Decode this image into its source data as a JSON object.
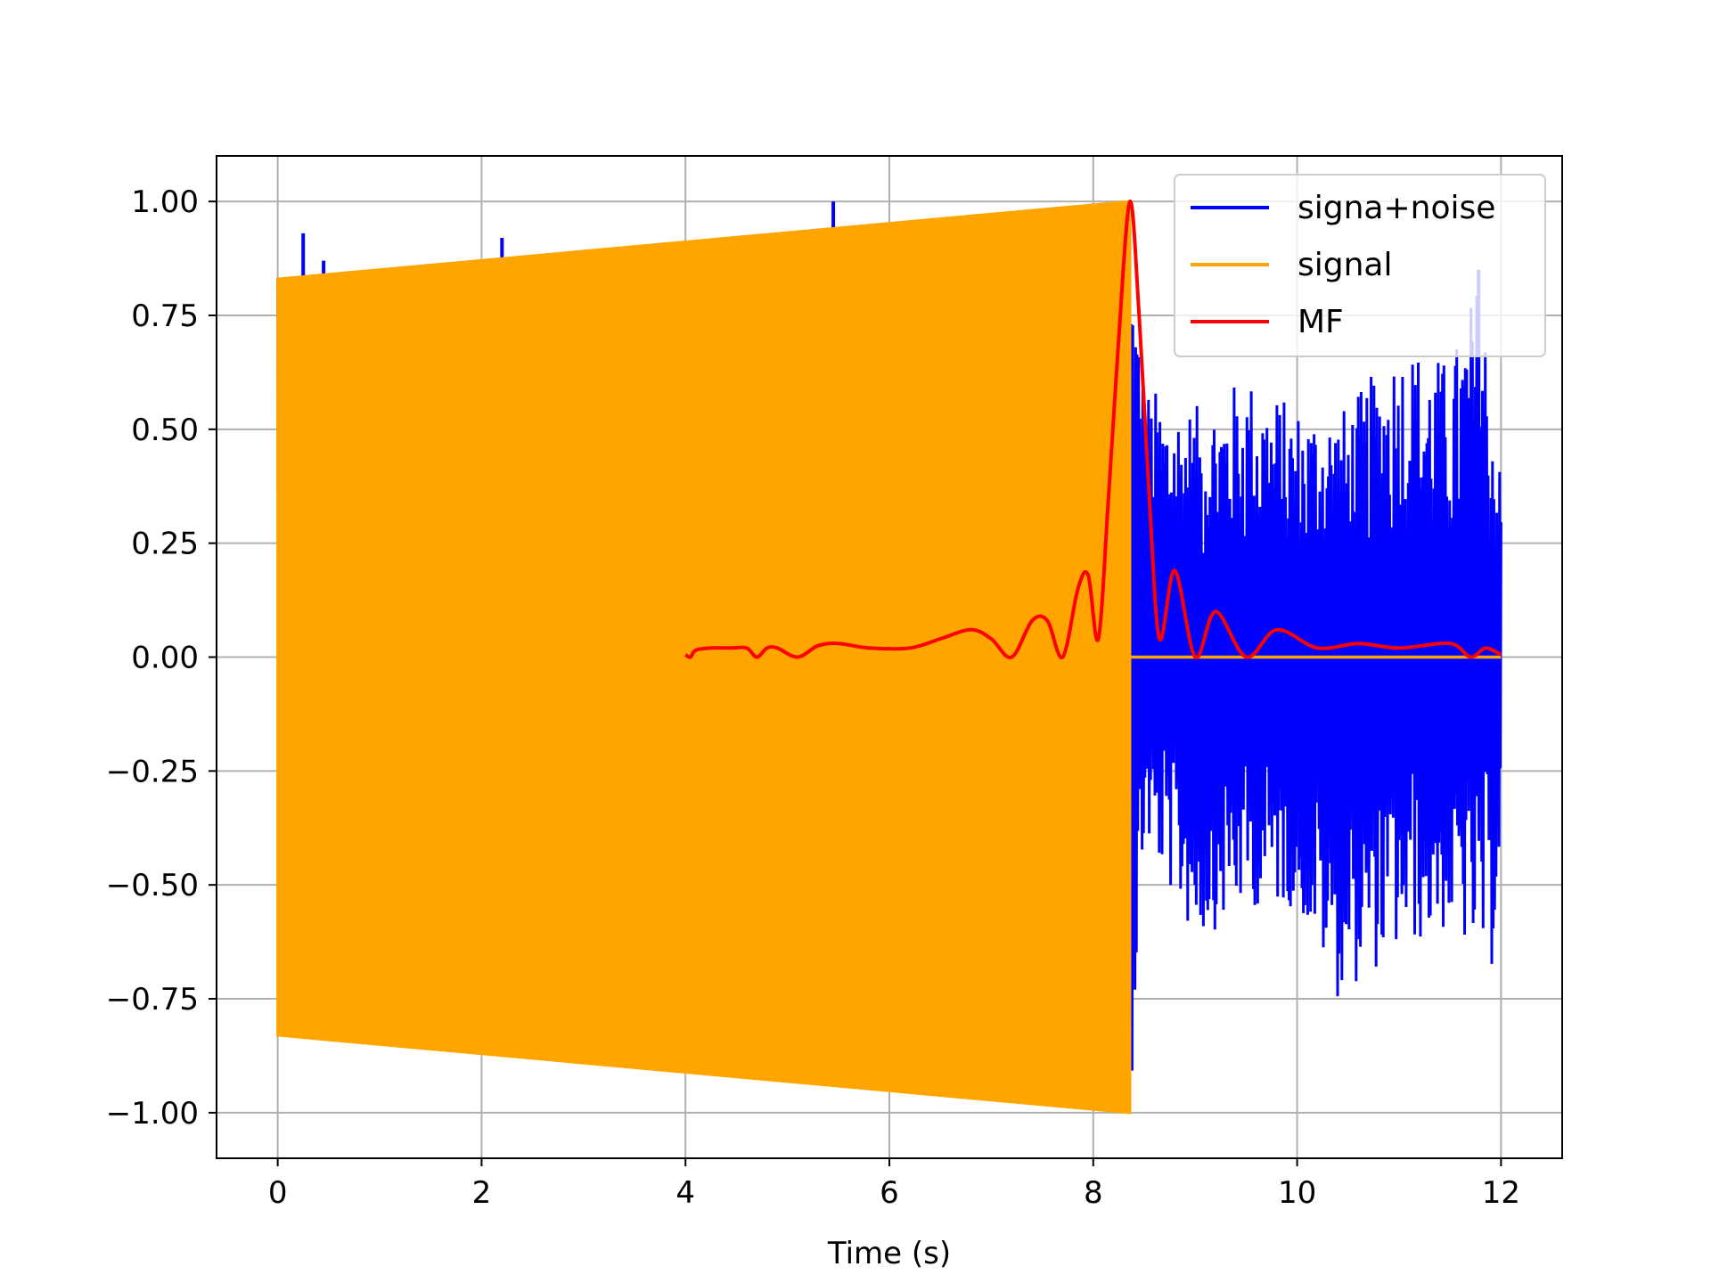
{
  "chart_data": {
    "type": "line",
    "xlabel": "Time (s)",
    "ylabel": "",
    "xlim": [
      -0.6,
      12.6
    ],
    "ylim": [
      -1.1,
      1.1
    ],
    "grid": true,
    "legend_position": "top-right",
    "xticks": [
      0,
      2,
      4,
      6,
      8,
      10,
      12
    ],
    "xtick_labels": [
      "0",
      "2",
      "4",
      "6",
      "8",
      "10",
      "12"
    ],
    "yticks": [
      1.0,
      0.75,
      0.5,
      0.25,
      0.0,
      -0.25,
      -0.5,
      -0.75,
      -1.0
    ],
    "ytick_labels": [
      "1.00",
      "0.75",
      "0.50",
      "0.25",
      "0.00",
      "−0.25",
      "−0.50",
      "−0.75",
      "−1.00"
    ],
    "series": [
      {
        "name": "signa+noise",
        "color": "#0000ff",
        "description": "chirp plus noise; after the chirp ends at ~8.36 s only noise remains",
        "upper_envelope": {
          "x": [
            0,
            0.25,
            0.45,
            2.2,
            5.45,
            8.36,
            8.5,
            9,
            9.5,
            10,
            10.5,
            11,
            11.5,
            11.8,
            12
          ],
          "y": [
            0.35,
            0.93,
            0.87,
            0.92,
            1.0,
            1.0,
            0.6,
            0.55,
            0.62,
            0.55,
            0.55,
            0.7,
            0.65,
            0.85,
            0.4
          ]
        },
        "lower_envelope": {
          "x": [
            0,
            0.25,
            8.36,
            8.5,
            9,
            9.5,
            10,
            10.4,
            11,
            11.5,
            11.9,
            12
          ],
          "y": [
            -0.83,
            -0.83,
            -1.0,
            -0.4,
            -0.63,
            -0.55,
            -0.55,
            -0.75,
            -0.65,
            -0.6,
            -0.71,
            -0.42
          ]
        }
      },
      {
        "name": "signal",
        "color": "#ffa500",
        "description": "linear chirp, amplitude rising linearly from 0.83 at t=0 to 1.0 at t=8.36, zero afterwards",
        "x": [
          0,
          8.36,
          8.36,
          12
        ],
        "amplitude": [
          0.83,
          1.0,
          0.0,
          0.0
        ]
      },
      {
        "name": "MF",
        "color": "#ff0000",
        "description": "matched filter output, peak 1.0 at t~8.36",
        "x": [
          4.0,
          4.05,
          4.1,
          4.25,
          4.45,
          4.6,
          4.7,
          4.8,
          4.9,
          5.1,
          5.3,
          5.5,
          5.8,
          6.2,
          6.5,
          6.8,
          7.0,
          7.2,
          7.4,
          7.55,
          7.7,
          7.85,
          7.95,
          8.05,
          8.15,
          8.25,
          8.36,
          8.45,
          8.55,
          8.65,
          8.8,
          9.0,
          9.2,
          9.5,
          9.8,
          10.2,
          10.6,
          11.0,
          11.5,
          11.7,
          11.85,
          12.0
        ],
        "y": [
          0.005,
          0.0,
          0.015,
          0.02,
          0.02,
          0.02,
          0.0,
          0.02,
          0.02,
          0.0,
          0.025,
          0.03,
          0.02,
          0.02,
          0.04,
          0.06,
          0.04,
          0.0,
          0.08,
          0.08,
          0.0,
          0.15,
          0.18,
          0.04,
          0.35,
          0.7,
          1.0,
          0.75,
          0.35,
          0.04,
          0.19,
          0.0,
          0.1,
          0.0,
          0.06,
          0.02,
          0.03,
          0.02,
          0.03,
          0.0,
          0.02,
          0.005
        ]
      }
    ]
  }
}
